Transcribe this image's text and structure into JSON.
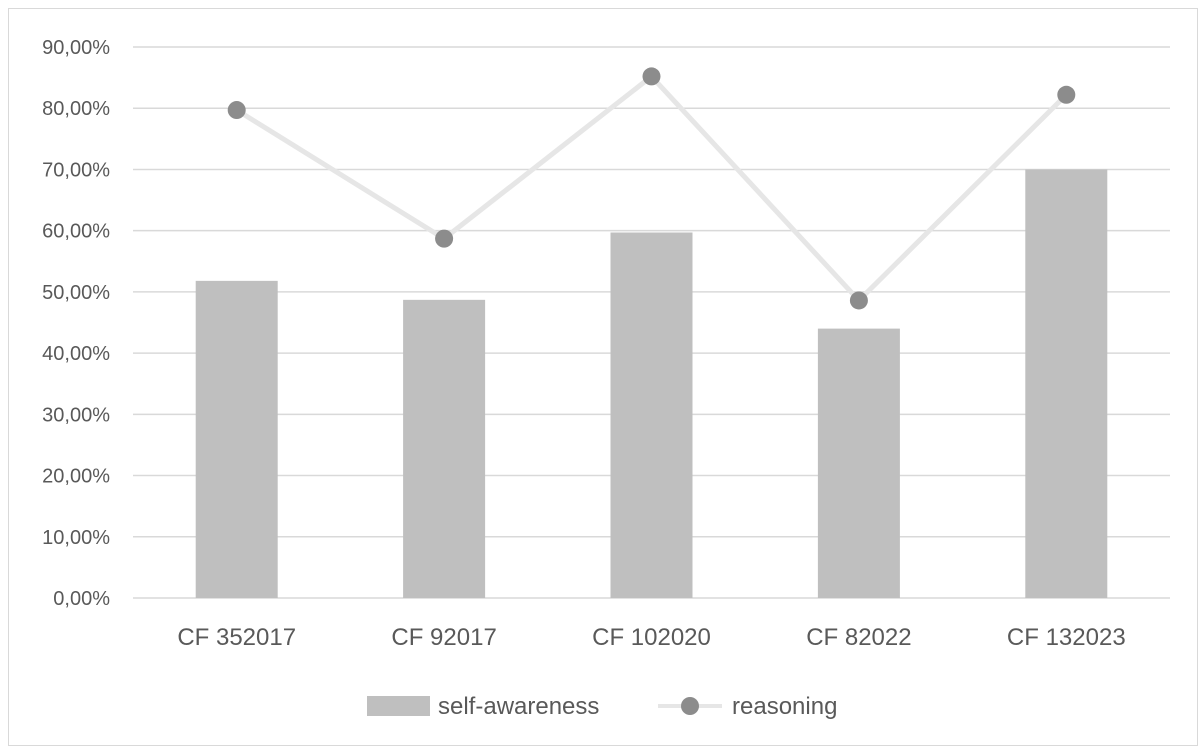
{
  "chart_data": {
    "type": "bar",
    "title": "",
    "xlabel": "",
    "ylabel": "",
    "categories": [
      "CF 352017",
      "CF 92017",
      "CF 102020",
      "CF 82022",
      "CF 132023"
    ],
    "series": [
      {
        "name": "self-awareness",
        "type": "bar",
        "values": [
          0.518,
          0.487,
          0.597,
          0.44,
          0.7
        ]
      },
      {
        "name": "reasoning",
        "type": "line",
        "values": [
          0.797,
          0.587,
          0.852,
          0.486,
          0.822
        ]
      }
    ],
    "ylim": [
      0,
      0.9
    ],
    "yticks": [
      "0,00%",
      "10,00%",
      "20,00%",
      "30,00%",
      "40,00%",
      "50,00%",
      "60,00%",
      "70,00%",
      "80,00%",
      "90,00%"
    ],
    "grid": true,
    "legend": "bottom",
    "colors": {
      "bar": "#bfbfbf",
      "line": "#e6e6e6",
      "marker": "#8c8c8c",
      "grid": "#d9d9d9",
      "text": "#595959"
    }
  }
}
